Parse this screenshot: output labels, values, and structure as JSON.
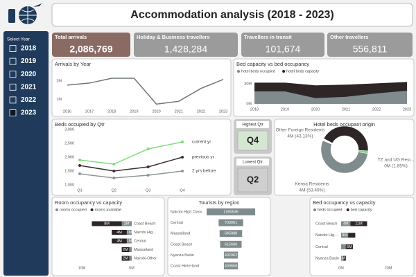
{
  "header": {
    "title": "Accommodation analysis (2018 - 2023)"
  },
  "slicer": {
    "title": "Select Year",
    "options": [
      {
        "label": "2018",
        "checked": false
      },
      {
        "label": "2019",
        "checked": false
      },
      {
        "label": "2020",
        "checked": false
      },
      {
        "label": "2021",
        "checked": false
      },
      {
        "label": "2022",
        "checked": false
      },
      {
        "label": "2023",
        "checked": true
      }
    ]
  },
  "kpis": [
    {
      "title": "Total arrivals",
      "value": "2,086,769"
    },
    {
      "title": "Holiday & Business travellers",
      "value": "1,428,284"
    },
    {
      "title": "Travellers in transit",
      "value": "101,674"
    },
    {
      "title": "Other travellers",
      "value": "556,811"
    }
  ],
  "cards": [
    {
      "title": "Highest Qtr",
      "value": "Q4"
    },
    {
      "title": "Lowest Qtr",
      "value": "Q2"
    }
  ],
  "chart_data": [
    {
      "type": "line",
      "title": "Arrivals by Year",
      "categories": [
        "2016",
        "2017",
        "2018",
        "2019",
        "2020",
        "2021",
        "2022",
        "2023"
      ],
      "values": [
        1780000,
        1890000,
        2150000,
        2150000,
        750000,
        900000,
        1600000,
        2086769
      ],
      "color": "#6b7576",
      "ylim": [
        650000,
        2450000
      ],
      "yticks": [
        {
          "value": 1000000,
          "label": "1M"
        },
        {
          "value": 2000000,
          "label": "2M"
        }
      ]
    },
    {
      "type": "area",
      "title": "Bed capacity vs bed occupancy",
      "categories": [
        "2018",
        "2019",
        "2020",
        "2021",
        "2022",
        "2023"
      ],
      "series": [
        {
          "name": "hotel beds occupied",
          "color": "#7f8b8c",
          "values": [
            18000000,
            18000000,
            8000000,
            10000000,
            15000000,
            19000000
          ]
        },
        {
          "name": "hotel beds capacity",
          "color": "#2d2526",
          "values": [
            31000000,
            31000000,
            27000000,
            28000000,
            30000000,
            32000000
          ]
        }
      ],
      "ylim": [
        0,
        35000000
      ],
      "yticks": [
        {
          "value": 0,
          "label": "0M"
        },
        {
          "value": 30000000,
          "label": "30M"
        }
      ]
    },
    {
      "type": "line",
      "title": "Beds occupied by Qtr",
      "categories": [
        "Q1",
        "Q2",
        "Q3",
        "Q4"
      ],
      "series": [
        {
          "name": "current yr",
          "color": "#7ddc7a",
          "values": [
            1900,
            1750,
            2300,
            2550
          ]
        },
        {
          "name": "previous yr",
          "color": "#3a2e2f",
          "values": [
            1700,
            1500,
            1650,
            2000
          ]
        },
        {
          "name": "2 yrs before",
          "color": "#8c9496",
          "values": [
            1400,
            1250,
            1350,
            1500
          ]
        }
      ],
      "markers": true,
      "end_labels": true,
      "ylim": [
        1000,
        3025
      ],
      "yticks": [
        {
          "value": 1000,
          "label": "1,000"
        },
        {
          "value": 1500,
          "label": "1,500"
        },
        {
          "value": 2000,
          "label": "2,000"
        },
        {
          "value": 2500,
          "label": "2,500"
        },
        {
          "value": 3000,
          "label": "3,000"
        }
      ]
    },
    {
      "type": "pie",
      "title": "Hotel beds occupant origin",
      "donut": true,
      "categories": [
        "Other Foreign Residents",
        "TZ and UG Resi...",
        "Kenya Residents"
      ],
      "values": [
        43.13,
        1.85,
        53.49
      ],
      "value_labels": [
        "4M (43.13%)",
        "0M (1.85%)",
        "4M (53.49%)"
      ],
      "colors": [
        "#2d2526",
        "#7ddc7a",
        "#7f8b8c"
      ]
    },
    {
      "type": "barh",
      "title": "Room occupancy vs capacity",
      "reversed": true,
      "categories": [
        "Coast Beach",
        "Nairobi Hig...",
        "Central",
        "Maasailand",
        "Nairobi-Other"
      ],
      "series": [
        {
          "name": "rooms occupied",
          "color": "#7f8b8c",
          "values": [
            2000000,
            1000000,
            1000000,
            500000,
            500000
          ],
          "value_labels": [
            "2M",
            "1M",
            "1M",
            null,
            null
          ]
        },
        {
          "name": "rooms available",
          "color": "#2d2526",
          "values": [
            8000000,
            4000000,
            4000000,
            2000000,
            2000000
          ],
          "value_labels": [
            "8M",
            "4M",
            "4M",
            "2M",
            "2M"
          ]
        }
      ],
      "xlim": [
        0,
        10700000
      ],
      "xticks": [
        {
          "value": 0,
          "label": "0M"
        },
        {
          "value": 10000000,
          "label": "10M"
        }
      ]
    },
    {
      "type": "funnel",
      "title": "Tourists by region",
      "categories": [
        "Nairobi High Class",
        "Central",
        "Maasailand",
        "Coast Beach",
        "Nyanza Basin",
        "Coast Hinterland"
      ],
      "values": [
        1390536,
        703001,
        645088,
        615606,
        402062,
        400668
      ],
      "color": "#7f8b8c"
    },
    {
      "type": "barh",
      "title": "Bed occupancy vs capacity",
      "reversed": false,
      "categories": [
        "Coast Beach",
        "Nairobi Hig...",
        "Central",
        "Nyanza Basin"
      ],
      "series": [
        {
          "name": "beds occupied",
          "color": "#7f8b8c",
          "values": [
            4000000,
            3000000,
            2000000,
            1000000
          ],
          "value_labels": [
            "4M",
            "3M",
            null,
            "1M"
          ]
        },
        {
          "name": "bed capacity",
          "color": "#2d2526",
          "values": [
            11000000,
            6000000,
            5000000,
            2000000
          ],
          "value_labels": [
            "11M",
            null,
            "5M",
            null
          ]
        }
      ],
      "xlim": [
        0,
        23500000
      ],
      "xticks": [
        {
          "value": 0,
          "label": "0M"
        },
        {
          "value": 20000000,
          "label": "20M"
        }
      ]
    }
  ]
}
